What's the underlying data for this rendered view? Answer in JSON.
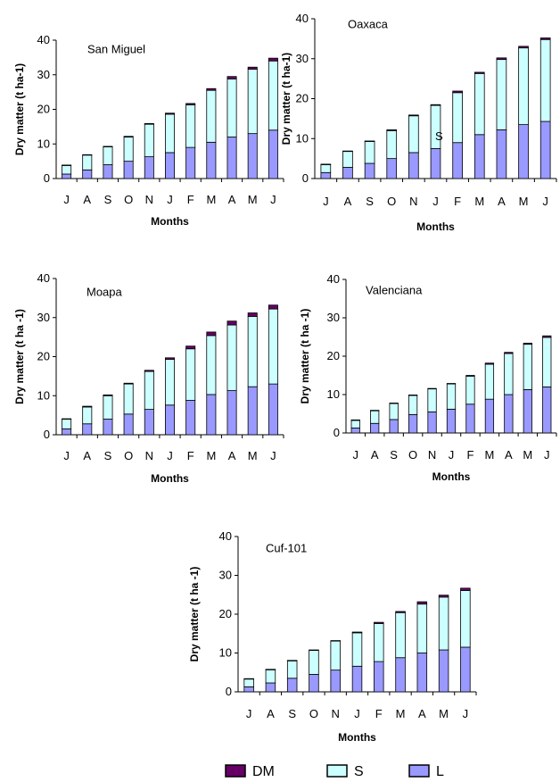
{
  "chart_data": [
    {
      "type": "bar",
      "stacked": true,
      "title": "San Miguel",
      "xlabel": "Months",
      "ylabel": "Dry matter (t ha-1)",
      "ylim": [
        0,
        40
      ],
      "yticks": [
        0,
        10,
        20,
        30,
        40
      ],
      "categories": [
        "J",
        "A",
        "S",
        "O",
        "N",
        "J",
        "F",
        "M",
        "A",
        "M",
        "J"
      ],
      "series": [
        {
          "name": "L",
          "values": [
            1.3,
            2.5,
            4.0,
            5.0,
            6.3,
            7.5,
            9.0,
            10.5,
            12.0,
            13.0,
            14.0
          ]
        },
        {
          "name": "S",
          "values": [
            2.5,
            4.3,
            5.2,
            7.0,
            9.4,
            11.1,
            12.3,
            15.0,
            16.8,
            18.6,
            20.0
          ]
        },
        {
          "name": "DM",
          "values": [
            0.1,
            0.1,
            0.1,
            0.2,
            0.2,
            0.3,
            0.4,
            0.5,
            0.7,
            0.6,
            0.8
          ]
        }
      ]
    },
    {
      "type": "bar",
      "stacked": true,
      "title": "Oaxaca",
      "xlabel": "Months",
      "ylabel": "Dry matter (t ha-1)",
      "ylim": [
        0,
        40
      ],
      "yticks": [
        0,
        10,
        20,
        30,
        40
      ],
      "categories": [
        "J",
        "A",
        "S",
        "O",
        "N",
        "J",
        "F",
        "M",
        "A",
        "M",
        "J"
      ],
      "annotation": "S",
      "series": [
        {
          "name": "L",
          "values": [
            1.5,
            2.8,
            3.8,
            5.0,
            6.5,
            7.5,
            9.0,
            11.0,
            12.2,
            13.5,
            14.3
          ]
        },
        {
          "name": "S",
          "values": [
            2.0,
            4.0,
            5.5,
            7.0,
            9.2,
            10.8,
            12.5,
            15.3,
            17.6,
            19.2,
            20.5
          ]
        },
        {
          "name": "DM",
          "values": [
            0.1,
            0.1,
            0.1,
            0.2,
            0.2,
            0.2,
            0.4,
            0.3,
            0.4,
            0.4,
            0.4
          ]
        }
      ]
    },
    {
      "type": "bar",
      "stacked": true,
      "title": "Moapa",
      "xlabel": "Months",
      "ylabel": "Dry matter (t ha -1)",
      "ylim": [
        0,
        40
      ],
      "yticks": [
        0,
        10,
        20,
        30,
        40
      ],
      "categories": [
        "J",
        "A",
        "S",
        "O",
        "N",
        "J",
        "F",
        "M",
        "A",
        "M",
        "J"
      ],
      "series": [
        {
          "name": "L",
          "values": [
            1.5,
            2.8,
            4.0,
            5.3,
            6.5,
            7.6,
            8.8,
            10.3,
            11.3,
            12.3,
            13.0
          ]
        },
        {
          "name": "S",
          "values": [
            2.5,
            4.3,
            6.0,
            7.7,
            9.7,
            11.7,
            13.2,
            15.1,
            16.8,
            18.0,
            19.2
          ]
        },
        {
          "name": "DM",
          "values": [
            0.1,
            0.2,
            0.2,
            0.2,
            0.3,
            0.4,
            0.7,
            0.9,
            1.0,
            0.9,
            1.0
          ]
        }
      ]
    },
    {
      "type": "bar",
      "stacked": true,
      "title": "Valenciana",
      "xlabel": "Months",
      "ylabel": "Dry matter (t ha -1)",
      "ylim": [
        0,
        40
      ],
      "yticks": [
        0,
        10,
        20,
        30,
        40
      ],
      "categories": [
        "J",
        "A",
        "S",
        "O",
        "N",
        "J",
        "F",
        "M",
        "A",
        "M",
        "J"
      ],
      "series": [
        {
          "name": "L",
          "values": [
            1.3,
            2.5,
            3.5,
            4.8,
            5.5,
            6.2,
            7.5,
            8.8,
            10.0,
            11.3,
            12.0
          ]
        },
        {
          "name": "S",
          "values": [
            2.0,
            3.3,
            4.2,
            5.0,
            6.0,
            6.6,
            7.3,
            9.1,
            10.7,
            11.8,
            12.9
          ]
        },
        {
          "name": "DM",
          "values": [
            0.1,
            0.1,
            0.1,
            0.1,
            0.1,
            0.1,
            0.2,
            0.3,
            0.3,
            0.3,
            0.4
          ]
        }
      ]
    },
    {
      "type": "bar",
      "stacked": true,
      "title": "Cuf-101",
      "xlabel": "Months",
      "ylabel": "Dry matter (t ha -1)",
      "ylim": [
        0,
        40
      ],
      "yticks": [
        0,
        10,
        20,
        30,
        40
      ],
      "categories": [
        "J",
        "A",
        "S",
        "O",
        "N",
        "J",
        "F",
        "M",
        "A",
        "M",
        "J"
      ],
      "series": [
        {
          "name": "L",
          "values": [
            1.3,
            2.3,
            3.5,
            4.5,
            5.6,
            6.6,
            7.8,
            8.8,
            10.0,
            10.8,
            11.5
          ]
        },
        {
          "name": "S",
          "values": [
            2.0,
            3.4,
            4.5,
            6.2,
            7.5,
            8.6,
            9.8,
            11.6,
            12.6,
            13.6,
            14.6
          ]
        },
        {
          "name": "DM",
          "values": [
            0.1,
            0.1,
            0.1,
            0.1,
            0.1,
            0.2,
            0.3,
            0.3,
            0.6,
            0.5,
            0.6
          ]
        }
      ]
    }
  ],
  "legend": {
    "placement": "bottom",
    "items": [
      {
        "label": "DM",
        "color": "#660066"
      },
      {
        "label": "S",
        "color": "#ccffff"
      },
      {
        "label": "L",
        "color": "#9999ff"
      }
    ]
  },
  "colors": {
    "L": "#9999ff",
    "S": "#ccffff",
    "DM": "#660066",
    "outline": "#000000"
  }
}
